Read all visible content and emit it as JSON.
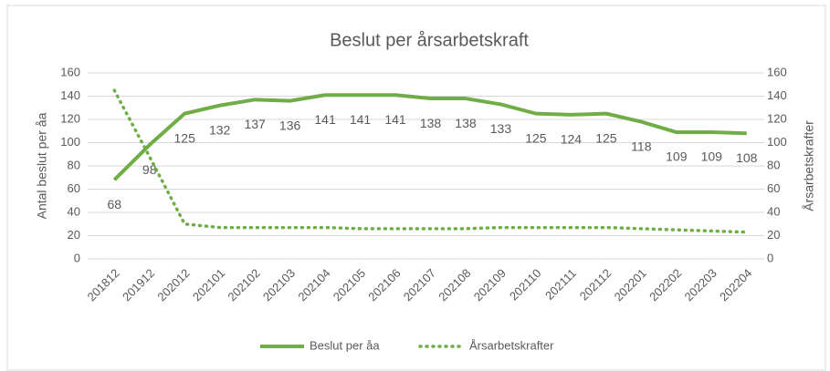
{
  "chart_data": {
    "type": "line",
    "title": "Beslut per årsarbetskraft",
    "categories": [
      "201812",
      "201912",
      "202012",
      "202101",
      "202102",
      "202103",
      "202104",
      "202105",
      "202106",
      "202107",
      "202108",
      "202109",
      "202110",
      "202111",
      "202112",
      "202201",
      "202202",
      "202203",
      "202204"
    ],
    "series": [
      {
        "name": "Beslut per åa",
        "color": "#70ad47",
        "style": "solid",
        "axis": "y",
        "show_labels": true,
        "values": [
          68,
          98,
          125,
          132,
          137,
          136,
          141,
          141,
          141,
          138,
          138,
          133,
          125,
          124,
          125,
          118,
          109,
          109,
          108
        ]
      },
      {
        "name": "Årsarbetskrafter",
        "color": "#70ad47",
        "style": "dotted",
        "axis": "y2",
        "show_labels": false,
        "values": [
          145,
          88,
          30,
          27,
          27,
          27,
          27,
          26,
          26,
          26,
          26,
          27,
          27,
          27,
          27,
          26,
          25,
          24,
          23
        ]
      }
    ],
    "ylabel": "Antal beslut per åa",
    "y2label": "Årsarbetskrafter",
    "ylim": [
      0,
      160
    ],
    "yticks": [
      0,
      20,
      40,
      60,
      80,
      100,
      120,
      140,
      160
    ],
    "y2lim": [
      0,
      160
    ],
    "y2ticks": [
      0,
      20,
      40,
      60,
      80,
      100,
      120,
      140,
      160
    ],
    "grid": true,
    "legend": "bottom"
  }
}
